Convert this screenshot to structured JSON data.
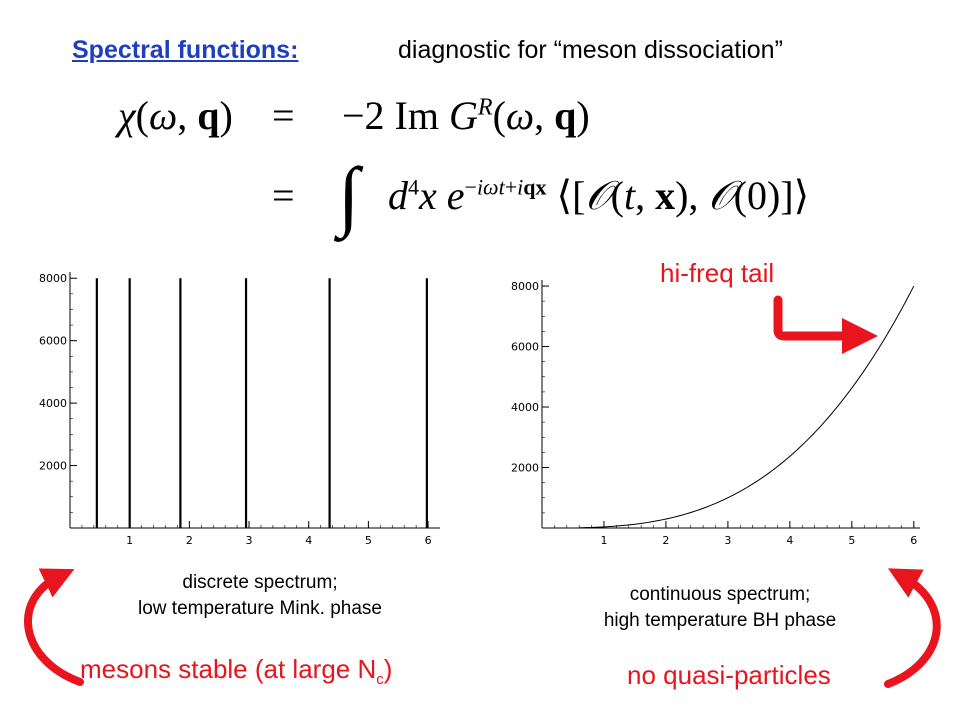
{
  "title": {
    "link_text": "Spectral functions:",
    "rest_text": "diagnostic for “meson dissociation”",
    "link_color": "#1f3fbf"
  },
  "equation": {
    "line1_lhs": "χ(ω, q)",
    "equals": "=",
    "line1_rhs": "−2 Im G^R(ω, q)",
    "line2_rhs": "∫ d⁴x e^(−iωt+iqx) ⟨[𝒪(t, x), 𝒪(0)]⟩"
  },
  "chart_data": [
    {
      "type": "line",
      "title": "",
      "xlabel": "",
      "ylabel": "",
      "x_ticks": [
        1,
        2,
        3,
        4,
        5,
        6
      ],
      "y_ticks": [
        2000,
        4000,
        6000,
        8000
      ],
      "xlim": [
        0,
        6.2
      ],
      "ylim": [
        0,
        8200
      ],
      "spikes_x": [
        0.45,
        1.0,
        1.85,
        2.95,
        4.35,
        5.98
      ],
      "spike_height": 8000,
      "caption_line1": "discrete spectrum;",
      "caption_line2": "low temperature Mink. phase"
    },
    {
      "type": "line",
      "title": "",
      "xlabel": "",
      "ylabel": "",
      "x_ticks": [
        1,
        2,
        3,
        4,
        5,
        6
      ],
      "y_ticks": [
        2000,
        4000,
        6000,
        8000
      ],
      "xlim": [
        0,
        6.1
      ],
      "ylim": [
        0,
        8200
      ],
      "curve": "cubic",
      "x": [
        1,
        2,
        3,
        4,
        5,
        6
      ],
      "y": [
        37,
        296,
        1000,
        2370,
        4630,
        8000
      ],
      "caption_line1": "continuous spectrum;",
      "caption_line2": "high temperature BH phase"
    }
  ],
  "annotations": {
    "hi_freq": "hi-freq tail",
    "mesons_stable_prefix": "mesons stable (at large N",
    "mesons_stable_sub": "c",
    "mesons_stable_suffix": ")",
    "no_quasi": "no quasi-particles",
    "accent_color": "#e8141e"
  }
}
